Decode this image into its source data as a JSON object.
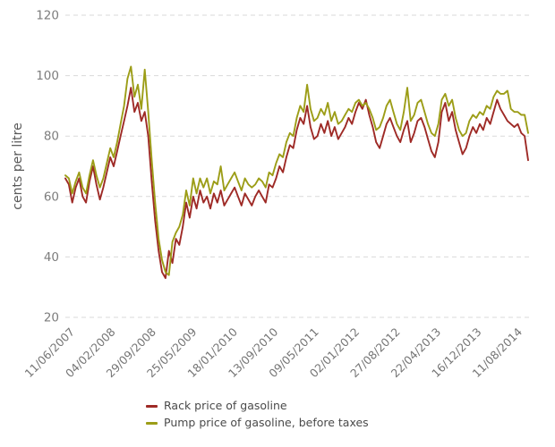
{
  "chart_data": {
    "type": "line",
    "title": "",
    "xlabel": "",
    "ylabel": "cents per litre",
    "ylim": [
      20,
      120
    ],
    "yticks": [
      20,
      40,
      60,
      80,
      100,
      120
    ],
    "grid": "horizontal dashed gridlines, no axis lines",
    "legend_position": "bottom",
    "x_tick_labels": [
      "11/06/2007",
      "04/02/2008",
      "29/09/2008",
      "25/05/2009",
      "18/01/2010",
      "13/09/2010",
      "09/05/2011",
      "02/01/2012",
      "27/08/2012",
      "22/04/2013",
      "16/12/2013",
      "11/08/2014"
    ],
    "x_note": "weekly observations from 11/06/2007 to late Oct 2014; series values below are sampled every ~20 days",
    "series": [
      {
        "name": "Rack price of gasoline",
        "color": "#9e2a26",
        "values": [
          66,
          64,
          58,
          63,
          66,
          60,
          58,
          65,
          70,
          64,
          59,
          63,
          68,
          73,
          70,
          75,
          80,
          85,
          90,
          96,
          88,
          91,
          85,
          88,
          80,
          65,
          52,
          42,
          35,
          33,
          42,
          38,
          46,
          44,
          50,
          58,
          53,
          60,
          56,
          62,
          58,
          60,
          56,
          61,
          58,
          62,
          57,
          59,
          61,
          63,
          60,
          57,
          61,
          59,
          57,
          60,
          62,
          60,
          58,
          64,
          63,
          66,
          70,
          68,
          73,
          77,
          76,
          82,
          86,
          84,
          90,
          83,
          79,
          80,
          84,
          81,
          85,
          80,
          83,
          79,
          81,
          83,
          86,
          84,
          88,
          91,
          89,
          92,
          87,
          83,
          78,
          76,
          80,
          84,
          86,
          83,
          80,
          78,
          82,
          85,
          78,
          81,
          85,
          86,
          83,
          79,
          75,
          73,
          78,
          88,
          91,
          85,
          88,
          82,
          78,
          74,
          76,
          80,
          83,
          81,
          84,
          82,
          86,
          84,
          88,
          92,
          89,
          87,
          85,
          84,
          83,
          84,
          81,
          80,
          72
        ]
      },
      {
        "name": "Pump price of gasoline, before taxes",
        "color": "#9c9d17",
        "values": [
          67,
          66,
          61,
          65,
          68,
          63,
          61,
          67,
          72,
          67,
          63,
          66,
          71,
          76,
          73,
          78,
          84,
          90,
          99,
          103,
          93,
          97,
          89,
          102,
          88,
          72,
          58,
          46,
          39,
          35,
          34,
          45,
          48,
          50,
          54,
          62,
          57,
          66,
          61,
          66,
          63,
          66,
          61,
          65,
          64,
          70,
          62,
          64,
          66,
          68,
          65,
          62,
          66,
          64,
          63,
          64,
          66,
          65,
          63,
          68,
          67,
          71,
          74,
          73,
          78,
          81,
          80,
          86,
          90,
          88,
          97,
          89,
          85,
          86,
          89,
          87,
          91,
          85,
          88,
          84,
          85,
          87,
          89,
          88,
          91,
          92,
          90,
          91,
          89,
          86,
          82,
          83,
          86,
          90,
          92,
          88,
          84,
          82,
          88,
          96,
          85,
          87,
          91,
          92,
          88,
          84,
          81,
          80,
          84,
          92,
          94,
          90,
          92,
          86,
          82,
          80,
          81,
          85,
          87,
          86,
          88,
          87,
          90,
          89,
          93,
          95,
          94,
          94,
          95,
          89,
          88,
          88,
          87,
          87,
          81
        ]
      }
    ]
  }
}
